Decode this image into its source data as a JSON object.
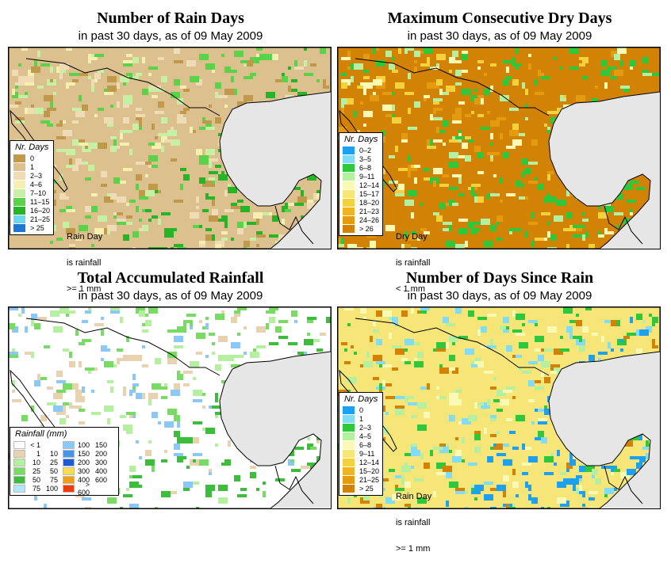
{
  "panels": [
    {
      "title": "Number of Rain Days",
      "subtitle": "in past 30 days, as of  09 May 2009",
      "legend_title": "Nr. Days",
      "legend": [
        {
          "label": "0",
          "color": "#c09a4a"
        },
        {
          "label": "1",
          "color": "#dcc08e"
        },
        {
          "label": "2–3",
          "color": "#efdcb4"
        },
        {
          "label": "4–6",
          "color": "#f6f0b0"
        },
        {
          "label": "7–10",
          "color": "#c8f0a4"
        },
        {
          "label": "11–15",
          "color": "#5ad24a"
        },
        {
          "label": "16–20",
          "color": "#27b427"
        },
        {
          "label": "21–25",
          "color": "#6ed6f0"
        },
        {
          "label": "> 25",
          "color": "#1e78d2"
        }
      ],
      "note": [
        "Rain Day",
        "is rainfall",
        ">= 1 mm"
      ],
      "palette": {
        "base": "#dcc08e",
        "dark": "#c09a4a",
        "light": "#efdcb4",
        "green": "#5ad24a",
        "pale": "#c8f0a4",
        "dgreen": "#27b427",
        "accent": "#f6f0b0"
      }
    },
    {
      "title": "Maximum Consecutive Dry Days",
      "subtitle": "in past 30 days, as of  09 May 2009",
      "legend_title": "Nr. Days",
      "legend": [
        {
          "label": "0–2",
          "color": "#1ea0f0"
        },
        {
          "label": "3–5",
          "color": "#82dcf5"
        },
        {
          "label": "6–8",
          "color": "#2ec83c"
        },
        {
          "label": "9–11",
          "color": "#b4f0a0"
        },
        {
          "label": "12–14",
          "color": "#fafab4"
        },
        {
          "label": "15–17",
          "color": "#f6e678"
        },
        {
          "label": "18–20",
          "color": "#f5d23c"
        },
        {
          "label": "21–23",
          "color": "#f0b41e"
        },
        {
          "label": "24–26",
          "color": "#e69b0f"
        },
        {
          "label": "> 26",
          "color": "#d28205"
        }
      ],
      "note": [
        "Dry Day",
        "is rainfall",
        "< 1 mm"
      ],
      "palette": {
        "base": "#d28205",
        "dark": "#e69b0f",
        "light": "#f5d23c",
        "green": "#2ec83c",
        "pale": "#b4f0a0",
        "dgreen": "#2ec83c",
        "accent": "#fafab4"
      }
    },
    {
      "title": "Total Accumulated Rainfall",
      "subtitle": "in past 30 days, as of  09 May 2009",
      "legend_title": "Rainfall (mm)",
      "legend_col1": [
        {
          "lo": "< 1",
          "hi": "",
          "color": "#ffffff"
        },
        {
          "lo": "1",
          "hi": "10",
          "color": "#e8d2b0"
        },
        {
          "lo": "10",
          "hi": "25",
          "color": "#b4f0a0"
        },
        {
          "lo": "25",
          "hi": "50",
          "color": "#78dc64"
        },
        {
          "lo": "50",
          "hi": "75",
          "color": "#3cbe3c"
        },
        {
          "lo": "75",
          "hi": "100",
          "color": "#b4e6fa"
        }
      ],
      "legend_col2": [
        {
          "lo": "100",
          "hi": "150",
          "color": "#8cc8f5"
        },
        {
          "lo": "150",
          "hi": "200",
          "color": "#4696e6"
        },
        {
          "lo": "200",
          "hi": "300",
          "color": "#1e5ad2"
        },
        {
          "lo": "300",
          "hi": "400",
          "color": "#fadc50"
        },
        {
          "lo": "400",
          "hi": "600",
          "color": "#f0a014"
        },
        {
          "lo": "> 600",
          "hi": "",
          "color": "#f03c0a"
        }
      ],
      "palette": {
        "base": "#ffffff",
        "dark": "#e8d2b0",
        "light": "#ffffff",
        "green": "#78dc64",
        "pale": "#b4f0a0",
        "dgreen": "#3cbe3c",
        "accent": "#8cc8f5"
      }
    },
    {
      "title": "Number of Days Since Rain",
      "subtitle": "in past 30 days, as of  09 May 2009",
      "legend_title": "Nr. Days",
      "legend": [
        {
          "label": "0",
          "color": "#1ea0f0"
        },
        {
          "label": "1",
          "color": "#82dcf5"
        },
        {
          "label": "2–3",
          "color": "#2ec83c"
        },
        {
          "label": "4–5",
          "color": "#b4f0a0"
        },
        {
          "label": "6–8",
          "color": "#fafab4"
        },
        {
          "label": "9–11",
          "color": "#f6e678"
        },
        {
          "label": "12–14",
          "color": "#f5d23c"
        },
        {
          "label": "15–20",
          "color": "#f0b41e"
        },
        {
          "label": "21–25",
          "color": "#e69b0f"
        },
        {
          "label": "> 25",
          "color": "#d28205"
        }
      ],
      "note": [
        "Rain Day",
        "is rainfall",
        ">= 1 mm"
      ],
      "palette": {
        "base": "#f6e678",
        "dark": "#d28205",
        "light": "#fafab4",
        "green": "#2ec83c",
        "pale": "#b4f0a0",
        "dgreen": "#1ea0f0",
        "accent": "#82dcf5"
      }
    }
  ]
}
